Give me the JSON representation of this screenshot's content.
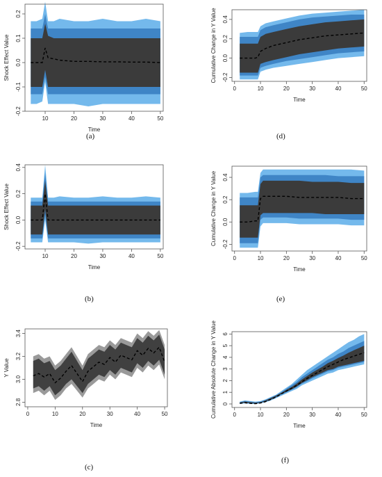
{
  "figure": {
    "colors": {
      "outer_band": "#74b9ec",
      "middle_band": "#3f85c6",
      "inner_band": "#3b3b3b",
      "median_line": "#000000",
      "y_band_outer": "#9a9a9a",
      "y_band_inner": "#404040"
    }
  },
  "chart_data": [
    {
      "id": "a",
      "type": "area",
      "caption": "(a)",
      "xlabel": "Time",
      "ylabel": "Shock Effect Value",
      "xlim": [
        3,
        51
      ],
      "ylim": [
        -0.2,
        0.24
      ],
      "xticks": [
        10,
        20,
        30,
        40,
        50
      ],
      "xtick_labels": [
        "10",
        "20",
        "30",
        "40",
        "50"
      ],
      "yticks": [
        -0.2,
        -0.1,
        0.0,
        0.1,
        0.2
      ],
      "ytick_labels": [
        "-0.2",
        "-0.1",
        "0.0",
        "0.1",
        "0.2"
      ],
      "x": [
        5,
        7,
        9,
        10,
        11,
        13,
        15,
        20,
        25,
        30,
        35,
        40,
        45,
        50
      ],
      "bands": [
        {
          "level": "outer",
          "upper": [
            0.17,
            0.17,
            0.18,
            0.25,
            0.17,
            0.17,
            0.18,
            0.17,
            0.17,
            0.18,
            0.17,
            0.17,
            0.18,
            0.17
          ],
          "lower": [
            -0.17,
            -0.17,
            -0.16,
            -0.08,
            -0.17,
            -0.17,
            -0.17,
            -0.17,
            -0.18,
            -0.17,
            -0.17,
            -0.17,
            -0.17,
            -0.17
          ]
        },
        {
          "level": "middle",
          "upper": [
            0.14,
            0.14,
            0.14,
            0.2,
            0.14,
            0.14,
            0.14,
            0.14,
            0.14,
            0.14,
            0.14,
            0.14,
            0.14,
            0.14
          ],
          "lower": [
            -0.13,
            -0.13,
            -0.13,
            -0.06,
            -0.13,
            -0.13,
            -0.13,
            -0.13,
            -0.13,
            -0.13,
            -0.13,
            -0.13,
            -0.13,
            -0.13
          ]
        },
        {
          "level": "inner",
          "upper": [
            0.1,
            0.1,
            0.1,
            0.16,
            0.11,
            0.1,
            0.1,
            0.1,
            0.1,
            0.1,
            0.1,
            0.1,
            0.1,
            0.1
          ],
          "lower": [
            -0.1,
            -0.1,
            -0.1,
            -0.03,
            -0.1,
            -0.1,
            -0.1,
            -0.1,
            -0.1,
            -0.1,
            -0.1,
            -0.1,
            -0.1,
            -0.1
          ]
        }
      ],
      "median": [
        0.0,
        0.0,
        0.0,
        0.06,
        0.02,
        0.015,
        0.01,
        0.005,
        0.005,
        0.003,
        0.003,
        0.002,
        0.002,
        0.0
      ]
    },
    {
      "id": "d",
      "type": "area",
      "caption": "(d)",
      "xlabel": "Time",
      "ylabel": "Cumulative Change in Y Value",
      "xlim": [
        -1,
        51
      ],
      "ylim": [
        -0.24,
        0.5
      ],
      "xticks": [
        0,
        10,
        20,
        30,
        40,
        50
      ],
      "xtick_labels": [
        "0",
        "10",
        "20",
        "30",
        "40",
        "50"
      ],
      "yticks": [
        -0.2,
        0.0,
        0.2,
        0.4
      ],
      "ytick_labels": [
        "-0.2",
        "0.0",
        "0.2",
        "0.4"
      ],
      "x": [
        2,
        5,
        8,
        9,
        10,
        12,
        15,
        20,
        25,
        30,
        35,
        40,
        45,
        50
      ],
      "bands": [
        {
          "level": "outer",
          "upper": [
            0.26,
            0.27,
            0.27,
            0.27,
            0.33,
            0.36,
            0.38,
            0.41,
            0.44,
            0.46,
            0.47,
            0.48,
            0.49,
            0.5
          ],
          "lower": [
            -0.22,
            -0.22,
            -0.22,
            -0.22,
            -0.14,
            -0.12,
            -0.1,
            -0.08,
            -0.06,
            -0.04,
            -0.02,
            0.0,
            0.01,
            0.02
          ]
        },
        {
          "level": "middle",
          "upper": [
            0.22,
            0.22,
            0.22,
            0.22,
            0.29,
            0.32,
            0.34,
            0.37,
            0.4,
            0.42,
            0.43,
            0.44,
            0.45,
            0.45
          ],
          "lower": [
            -0.18,
            -0.18,
            -0.18,
            -0.18,
            -0.1,
            -0.08,
            -0.06,
            -0.03,
            -0.01,
            0.01,
            0.03,
            0.05,
            0.06,
            0.07
          ]
        },
        {
          "level": "inner",
          "upper": [
            0.15,
            0.15,
            0.15,
            0.15,
            0.22,
            0.25,
            0.27,
            0.3,
            0.33,
            0.35,
            0.37,
            0.38,
            0.39,
            0.4
          ],
          "lower": [
            -0.15,
            -0.15,
            -0.15,
            -0.15,
            -0.06,
            -0.04,
            -0.02,
            0.01,
            0.04,
            0.06,
            0.08,
            0.1,
            0.11,
            0.12
          ]
        }
      ],
      "median": [
        0.0,
        0.0,
        0.0,
        0.01,
        0.07,
        0.1,
        0.13,
        0.16,
        0.19,
        0.21,
        0.23,
        0.24,
        0.25,
        0.26
      ]
    },
    {
      "id": "b",
      "type": "area",
      "caption": "(b)",
      "xlabel": "Time",
      "ylabel": "Shock Effect Value",
      "xlim": [
        3,
        51
      ],
      "ylim": [
        -0.22,
        0.42
      ],
      "xticks": [
        10,
        20,
        30,
        40,
        50
      ],
      "xtick_labels": [
        "10",
        "20",
        "30",
        "40",
        "50"
      ],
      "yticks": [
        -0.2,
        0.0,
        0.2,
        0.4
      ],
      "ytick_labels": [
        "-0.2",
        "0.0",
        "0.2",
        "0.4"
      ],
      "x": [
        5,
        7,
        9,
        10,
        11,
        13,
        15,
        20,
        25,
        30,
        35,
        40,
        45,
        50
      ],
      "bands": [
        {
          "level": "outer",
          "upper": [
            0.17,
            0.17,
            0.17,
            0.42,
            0.17,
            0.17,
            0.18,
            0.17,
            0.17,
            0.18,
            0.17,
            0.17,
            0.18,
            0.17
          ],
          "lower": [
            -0.17,
            -0.17,
            -0.17,
            0.0,
            -0.17,
            -0.17,
            -0.17,
            -0.17,
            -0.18,
            -0.17,
            -0.17,
            -0.17,
            -0.17,
            -0.17
          ]
        },
        {
          "level": "middle",
          "upper": [
            0.14,
            0.14,
            0.14,
            0.36,
            0.14,
            0.14,
            0.14,
            0.14,
            0.14,
            0.14,
            0.14,
            0.14,
            0.14,
            0.14
          ],
          "lower": [
            -0.14,
            -0.14,
            -0.14,
            0.04,
            -0.14,
            -0.14,
            -0.14,
            -0.14,
            -0.14,
            -0.14,
            -0.14,
            -0.14,
            -0.14,
            -0.14
          ]
        },
        {
          "level": "inner",
          "upper": [
            0.11,
            0.11,
            0.11,
            0.3,
            0.11,
            0.11,
            0.11,
            0.11,
            0.11,
            0.11,
            0.11,
            0.11,
            0.11,
            0.11
          ],
          "lower": [
            -0.11,
            -0.11,
            -0.11,
            0.08,
            -0.11,
            -0.11,
            -0.11,
            -0.11,
            -0.11,
            -0.11,
            -0.11,
            -0.11,
            -0.11,
            -0.11
          ]
        }
      ],
      "median": [
        0.0,
        0.0,
        0.0,
        0.2,
        0.0,
        0.0,
        0.0,
        0.0,
        0.0,
        0.0,
        0.0,
        0.0,
        0.0,
        0.0
      ]
    },
    {
      "id": "e",
      "type": "area",
      "caption": "(e)",
      "xlabel": "Time",
      "ylabel": "Cumulative Change in Y Value",
      "xlim": [
        -1,
        51
      ],
      "ylim": [
        -0.26,
        0.5
      ],
      "xticks": [
        0,
        10,
        20,
        30,
        40,
        50
      ],
      "xtick_labels": [
        "0",
        "10",
        "20",
        "30",
        "40",
        "50"
      ],
      "yticks": [
        -0.2,
        0.0,
        0.2,
        0.4
      ],
      "ytick_labels": [
        "-0.2",
        "0.0",
        "0.2",
        "0.4"
      ],
      "x": [
        2,
        5,
        8,
        9,
        10,
        11,
        15,
        20,
        25,
        30,
        35,
        40,
        45,
        50
      ],
      "bands": [
        {
          "level": "outer",
          "upper": [
            0.26,
            0.26,
            0.27,
            0.27,
            0.44,
            0.47,
            0.47,
            0.47,
            0.47,
            0.47,
            0.47,
            0.47,
            0.47,
            0.46
          ],
          "lower": [
            -0.23,
            -0.23,
            -0.23,
            -0.23,
            -0.04,
            -0.01,
            -0.01,
            -0.01,
            -0.02,
            -0.02,
            -0.02,
            -0.02,
            -0.03,
            -0.03
          ]
        },
        {
          "level": "middle",
          "upper": [
            0.22,
            0.22,
            0.22,
            0.22,
            0.4,
            0.42,
            0.42,
            0.42,
            0.42,
            0.42,
            0.42,
            0.41,
            0.41,
            0.41
          ],
          "lower": [
            -0.19,
            -0.19,
            -0.19,
            -0.19,
            0.02,
            0.04,
            0.04,
            0.04,
            0.03,
            0.03,
            0.03,
            0.03,
            0.02,
            0.02
          ]
        },
        {
          "level": "inner",
          "upper": [
            0.15,
            0.15,
            0.15,
            0.15,
            0.34,
            0.37,
            0.37,
            0.37,
            0.37,
            0.36,
            0.36,
            0.36,
            0.35,
            0.35
          ],
          "lower": [
            -0.14,
            -0.14,
            -0.14,
            -0.14,
            0.06,
            0.08,
            0.08,
            0.08,
            0.08,
            0.08,
            0.07,
            0.07,
            0.07,
            0.07
          ]
        }
      ],
      "median": [
        0.0,
        0.0,
        0.01,
        0.01,
        0.21,
        0.23,
        0.23,
        0.23,
        0.22,
        0.22,
        0.22,
        0.22,
        0.21,
        0.21
      ]
    },
    {
      "id": "c",
      "type": "area",
      "caption": "(c)",
      "xlabel": "Time",
      "ylabel": "Y Value",
      "xlim": [
        -1,
        51
      ],
      "ylim": [
        2.76,
        3.44
      ],
      "xticks": [
        0,
        10,
        20,
        30,
        40,
        50
      ],
      "xtick_labels": [
        "0",
        "10",
        "20",
        "30",
        "40",
        "50"
      ],
      "yticks": [
        2.8,
        3.0,
        3.2,
        3.4
      ],
      "ytick_labels": [
        "2.8",
        "3.0",
        "3.2",
        "3.4"
      ],
      "x": [
        2,
        4,
        6,
        8,
        10,
        12,
        14,
        16,
        18,
        20,
        22,
        24,
        26,
        28,
        30,
        32,
        34,
        36,
        38,
        40,
        42,
        44,
        46,
        48,
        50
      ],
      "bands": [
        {
          "level": "y_outer",
          "upper": [
            3.2,
            3.22,
            3.18,
            3.2,
            3.12,
            3.16,
            3.22,
            3.28,
            3.2,
            3.12,
            3.22,
            3.26,
            3.3,
            3.28,
            3.34,
            3.3,
            3.36,
            3.34,
            3.32,
            3.4,
            3.36,
            3.42,
            3.38,
            3.43,
            3.3
          ],
          "lower": [
            2.88,
            2.9,
            2.86,
            2.9,
            2.82,
            2.86,
            2.92,
            2.96,
            2.9,
            2.84,
            2.92,
            2.96,
            3.0,
            2.98,
            3.04,
            3.0,
            3.06,
            3.04,
            3.02,
            3.1,
            3.06,
            3.12,
            3.08,
            3.13,
            3.0
          ]
        },
        {
          "level": "y_inner",
          "upper": [
            3.16,
            3.18,
            3.14,
            3.16,
            3.08,
            3.12,
            3.18,
            3.24,
            3.16,
            3.08,
            3.18,
            3.22,
            3.26,
            3.24,
            3.3,
            3.26,
            3.32,
            3.3,
            3.28,
            3.36,
            3.32,
            3.38,
            3.34,
            3.39,
            3.26
          ],
          "lower": [
            2.92,
            2.94,
            2.9,
            2.94,
            2.86,
            2.9,
            2.96,
            3.0,
            2.94,
            2.88,
            2.96,
            3.0,
            3.04,
            3.02,
            3.08,
            3.04,
            3.1,
            3.08,
            3.06,
            3.14,
            3.1,
            3.16,
            3.12,
            3.17,
            3.04
          ]
        }
      ],
      "median": [
        3.03,
        3.05,
        3.02,
        3.05,
        2.97,
        3.01,
        3.07,
        3.12,
        3.05,
        2.98,
        3.07,
        3.11,
        3.15,
        3.13,
        3.19,
        3.15,
        3.21,
        3.19,
        3.17,
        3.25,
        3.21,
        3.27,
        3.23,
        3.28,
        3.15
      ]
    },
    {
      "id": "f",
      "type": "area",
      "caption": "(f)",
      "xlabel": "Time",
      "ylabel": "Cumulative Absolute Change in Y Value",
      "xlim": [
        -1,
        51
      ],
      "ylim": [
        -0.3,
        6.2
      ],
      "xticks": [
        0,
        10,
        20,
        30,
        40,
        50
      ],
      "xtick_labels": [
        "0",
        "10",
        "20",
        "30",
        "40",
        "50"
      ],
      "yticks": [
        0,
        1,
        2,
        3,
        4,
        5,
        6
      ],
      "ytick_labels": [
        "0",
        "1",
        "2",
        "3",
        "4",
        "5",
        "6"
      ],
      "x": [
        2,
        4,
        6,
        8,
        10,
        12,
        14,
        16,
        18,
        20,
        22,
        24,
        26,
        28,
        30,
        32,
        34,
        36,
        38,
        40,
        42,
        44,
        46,
        48,
        50
      ],
      "bands": [
        {
          "level": "outer",
          "upper": [
            0.2,
            0.3,
            0.25,
            0.2,
            0.25,
            0.4,
            0.6,
            0.8,
            1.1,
            1.4,
            1.7,
            2.1,
            2.5,
            2.9,
            3.2,
            3.5,
            3.8,
            4.1,
            4.4,
            4.7,
            5.0,
            5.3,
            5.5,
            5.8,
            6.0
          ],
          "lower": [
            0.0,
            0.05,
            0.0,
            0.0,
            0.05,
            0.15,
            0.3,
            0.5,
            0.7,
            0.9,
            1.1,
            1.3,
            1.6,
            1.8,
            2.0,
            2.2,
            2.4,
            2.6,
            2.7,
            2.9,
            3.0,
            3.1,
            3.2,
            3.3,
            3.4
          ]
        },
        {
          "level": "middle",
          "upper": [
            0.15,
            0.25,
            0.2,
            0.15,
            0.2,
            0.35,
            0.55,
            0.75,
            1.0,
            1.3,
            1.6,
            1.9,
            2.3,
            2.6,
            2.9,
            3.2,
            3.5,
            3.8,
            4.0,
            4.3,
            4.5,
            4.8,
            5.0,
            5.2,
            5.4
          ],
          "lower": [
            0.05,
            0.1,
            0.05,
            0.02,
            0.08,
            0.2,
            0.35,
            0.55,
            0.8,
            1.0,
            1.2,
            1.45,
            1.75,
            1.95,
            2.2,
            2.4,
            2.6,
            2.8,
            2.9,
            3.1,
            3.2,
            3.3,
            3.4,
            3.5,
            3.6
          ]
        },
        {
          "level": "inner",
          "upper": [
            0.12,
            0.2,
            0.15,
            0.1,
            0.15,
            0.3,
            0.5,
            0.7,
            0.95,
            1.2,
            1.45,
            1.75,
            2.1,
            2.4,
            2.7,
            2.95,
            3.2,
            3.5,
            3.7,
            3.95,
            4.15,
            4.4,
            4.6,
            4.8,
            5.0
          ],
          "lower": [
            0.06,
            0.12,
            0.07,
            0.04,
            0.1,
            0.22,
            0.38,
            0.6,
            0.85,
            1.05,
            1.25,
            1.5,
            1.8,
            2.05,
            2.3,
            2.5,
            2.7,
            2.9,
            3.0,
            3.2,
            3.3,
            3.4,
            3.5,
            3.6,
            3.7
          ]
        }
      ],
      "median": [
        0.05,
        0.1,
        0.05,
        0.02,
        0.08,
        0.2,
        0.4,
        0.6,
        0.85,
        1.1,
        1.35,
        1.6,
        1.9,
        2.2,
        2.45,
        2.7,
        2.95,
        3.2,
        3.4,
        3.6,
        3.8,
        3.95,
        4.1,
        4.25,
        4.4
      ]
    }
  ]
}
